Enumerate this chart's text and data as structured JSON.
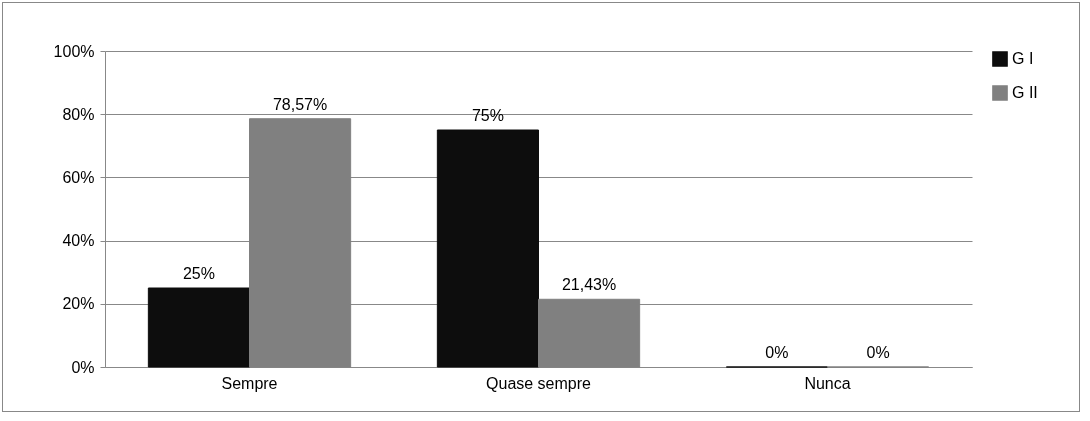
{
  "chart_data": {
    "type": "bar",
    "categories": [
      "Sempre",
      "Quase sempre",
      "Nunca"
    ],
    "series": [
      {
        "name": "G I",
        "color": "#0d0d0d",
        "values": [
          25,
          75,
          0
        ],
        "value_labels": [
          "25%",
          "75%",
          "0%"
        ]
      },
      {
        "name": "G II",
        "color": "#808080",
        "values": [
          78.57,
          21.43,
          0
        ],
        "value_labels": [
          "78,57%",
          "21,43%",
          "0%"
        ]
      }
    ],
    "ylim": [
      0,
      100
    ],
    "yticks": [
      {
        "value": 0,
        "label": "0%"
      },
      {
        "value": 20,
        "label": "20%"
      },
      {
        "value": 40,
        "label": "40%"
      },
      {
        "value": 60,
        "label": "60%"
      },
      {
        "value": 80,
        "label": "80%"
      },
      {
        "value": 100,
        "label": "100%"
      }
    ],
    "grid": "y",
    "legend": "right"
  }
}
